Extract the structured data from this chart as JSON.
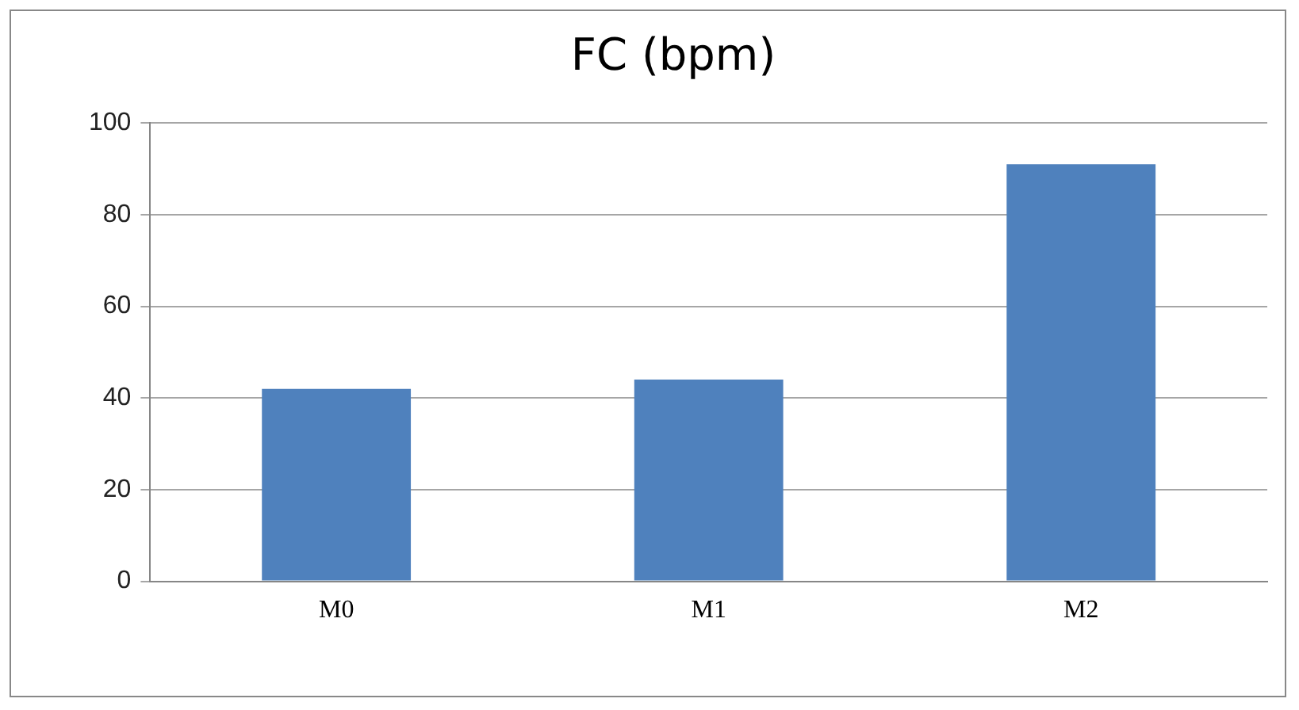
{
  "chart_data": {
    "type": "bar",
    "title": "FC (bpm)",
    "categories": [
      "M0",
      "M1",
      "M2"
    ],
    "values": [
      42,
      44,
      91
    ],
    "color": "#4f81bd",
    "ylim": [
      0,
      100
    ],
    "yticks": [
      0,
      20,
      40,
      60,
      80,
      100
    ],
    "grid": "y",
    "legend": false
  }
}
